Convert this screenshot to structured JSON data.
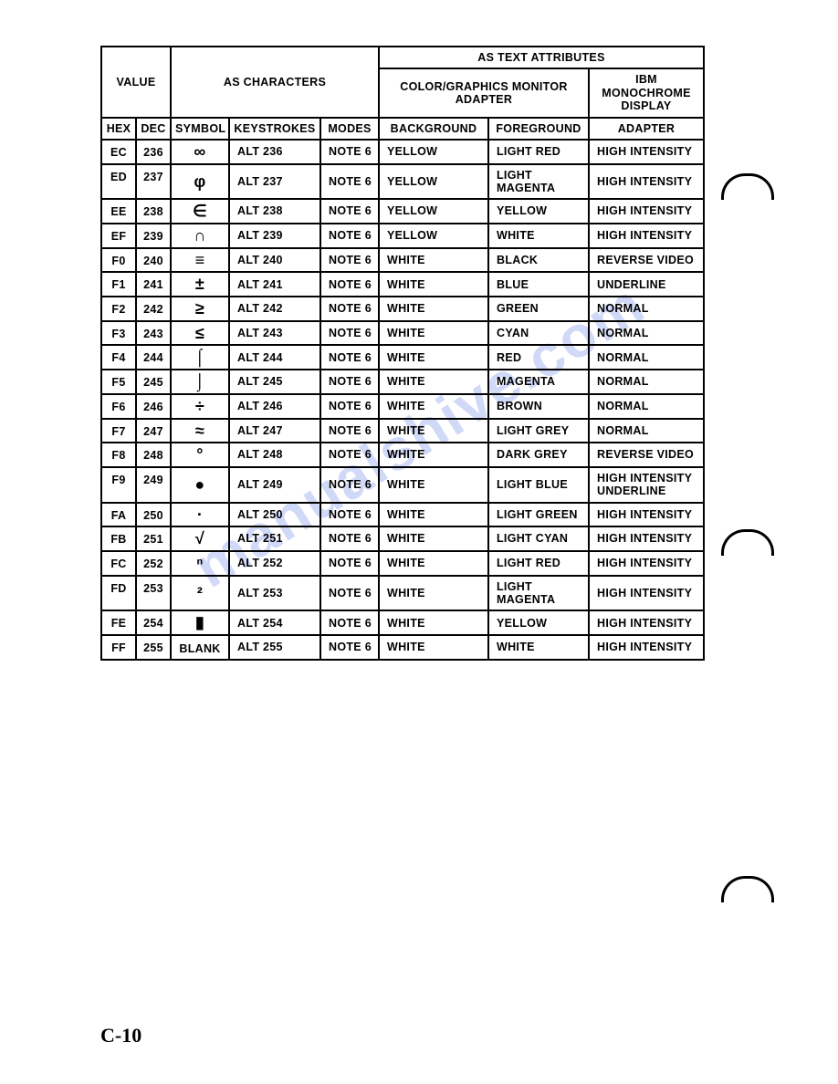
{
  "pageNumber": "C-10",
  "watermark": "manualshive.com",
  "headers": {
    "value": "VALUE",
    "asCharacters": "AS CHARACTERS",
    "asTextAttributes": "AS TEXT ATTRIBUTES",
    "colorGraphics": "COLOR/GRAPHICS MONITOR ADAPTER",
    "ibmMono": "IBM MONOCHROME DISPLAY",
    "hex": "HEX",
    "dec": "DEC",
    "symbol": "SYMBOL",
    "keystrokes": "KEYSTROKES",
    "modes": "MODES",
    "background": "BACKGROUND",
    "foreground": "FOREGROUND",
    "adapter": "ADAPTER"
  },
  "rows": [
    {
      "hex": "EC",
      "dec": "236",
      "symbol": "∞",
      "keystrokes": "ALT 236",
      "modes": "NOTE 6",
      "bg": "YELLOW",
      "fg": "LIGHT RED",
      "mono": "HIGH INTENSITY"
    },
    {
      "hex": "ED",
      "dec": "237",
      "symbol": "φ",
      "keystrokes": "ALT 237",
      "modes": "NOTE 6",
      "bg": "YELLOW",
      "fg": "LIGHT MAGENTA",
      "mono": "HIGH INTENSITY"
    },
    {
      "hex": "EE",
      "dec": "238",
      "symbol": "∈",
      "keystrokes": "ALT 238",
      "modes": "NOTE 6",
      "bg": "YELLOW",
      "fg": "YELLOW",
      "mono": "HIGH INTENSITY"
    },
    {
      "hex": "EF",
      "dec": "239",
      "symbol": "∩",
      "keystrokes": "ALT 239",
      "modes": "NOTE 6",
      "bg": "YELLOW",
      "fg": "WHITE",
      "mono": "HIGH INTENSITY"
    },
    {
      "hex": "F0",
      "dec": "240",
      "symbol": "≡",
      "keystrokes": "ALT 240",
      "modes": "NOTE 6",
      "bg": "WHITE",
      "fg": "BLACK",
      "mono": "REVERSE VIDEO"
    },
    {
      "hex": "F1",
      "dec": "241",
      "symbol": "±",
      "keystrokes": "ALT 241",
      "modes": "NOTE 6",
      "bg": "WHITE",
      "fg": "BLUE",
      "mono": "UNDERLINE"
    },
    {
      "hex": "F2",
      "dec": "242",
      "symbol": "≥",
      "keystrokes": "ALT 242",
      "modes": "NOTE 6",
      "bg": "WHITE",
      "fg": "GREEN",
      "mono": "NORMAL"
    },
    {
      "hex": "F3",
      "dec": "243",
      "symbol": "≤",
      "keystrokes": "ALT 243",
      "modes": "NOTE 6",
      "bg": "WHITE",
      "fg": "CYAN",
      "mono": "NORMAL"
    },
    {
      "hex": "F4",
      "dec": "244",
      "symbol": "⌠",
      "keystrokes": "ALT 244",
      "modes": "NOTE 6",
      "bg": "WHITE",
      "fg": "RED",
      "mono": "NORMAL"
    },
    {
      "hex": "F5",
      "dec": "245",
      "symbol": "⌡",
      "keystrokes": "ALT 245",
      "modes": "NOTE 6",
      "bg": "WHITE",
      "fg": "MAGENTA",
      "mono": "NORMAL"
    },
    {
      "hex": "F6",
      "dec": "246",
      "symbol": "÷",
      "keystrokes": "ALT 246",
      "modes": "NOTE 6",
      "bg": "WHITE",
      "fg": "BROWN",
      "mono": "NORMAL"
    },
    {
      "hex": "F7",
      "dec": "247",
      "symbol": "≈",
      "keystrokes": "ALT 247",
      "modes": "NOTE 6",
      "bg": "WHITE",
      "fg": "LIGHT GREY",
      "mono": "NORMAL"
    },
    {
      "hex": "F8",
      "dec": "248",
      "symbol": "°",
      "keystrokes": "ALT 248",
      "modes": "NOTE 6",
      "bg": "WHITE",
      "fg": "DARK GREY",
      "mono": "REVERSE VIDEO"
    },
    {
      "hex": "F9",
      "dec": "249",
      "symbol": "●",
      "keystrokes": "ALT 249",
      "modes": "NOTE 6",
      "bg": "WHITE",
      "fg": "LIGHT BLUE",
      "mono": "HIGH INTENSITY UNDERLINE"
    },
    {
      "hex": "FA",
      "dec": "250",
      "symbol": "·",
      "keystrokes": "ALT 250",
      "modes": "NOTE 6",
      "bg": "WHITE",
      "fg": "LIGHT GREEN",
      "mono": "HIGH INTENSITY"
    },
    {
      "hex": "FB",
      "dec": "251",
      "symbol": "√",
      "keystrokes": "ALT 251",
      "modes": "NOTE 6",
      "bg": "WHITE",
      "fg": "LIGHT CYAN",
      "mono": "HIGH INTENSITY"
    },
    {
      "hex": "FC",
      "dec": "252",
      "symbol": "ⁿ",
      "keystrokes": "ALT 252",
      "modes": "NOTE 6",
      "bg": "WHITE",
      "fg": "LIGHT RED",
      "mono": "HIGH INTENSITY"
    },
    {
      "hex": "FD",
      "dec": "253",
      "symbol": "²",
      "keystrokes": "ALT 253",
      "modes": "NOTE 6",
      "bg": "WHITE",
      "fg": "LIGHT MAGENTA",
      "mono": "HIGH INTENSITY"
    },
    {
      "hex": "FE",
      "dec": "254",
      "symbol": "▮",
      "keystrokes": "ALT 254",
      "modes": "NOTE 6",
      "bg": "WHITE",
      "fg": "YELLOW",
      "mono": "HIGH INTENSITY"
    },
    {
      "hex": "FF",
      "dec": "255",
      "symbol": "BLANK",
      "keystrokes": "ALT 255",
      "modes": "NOTE 6",
      "bg": "WHITE",
      "fg": "WHITE",
      "mono": "HIGH INTENSITY"
    }
  ]
}
